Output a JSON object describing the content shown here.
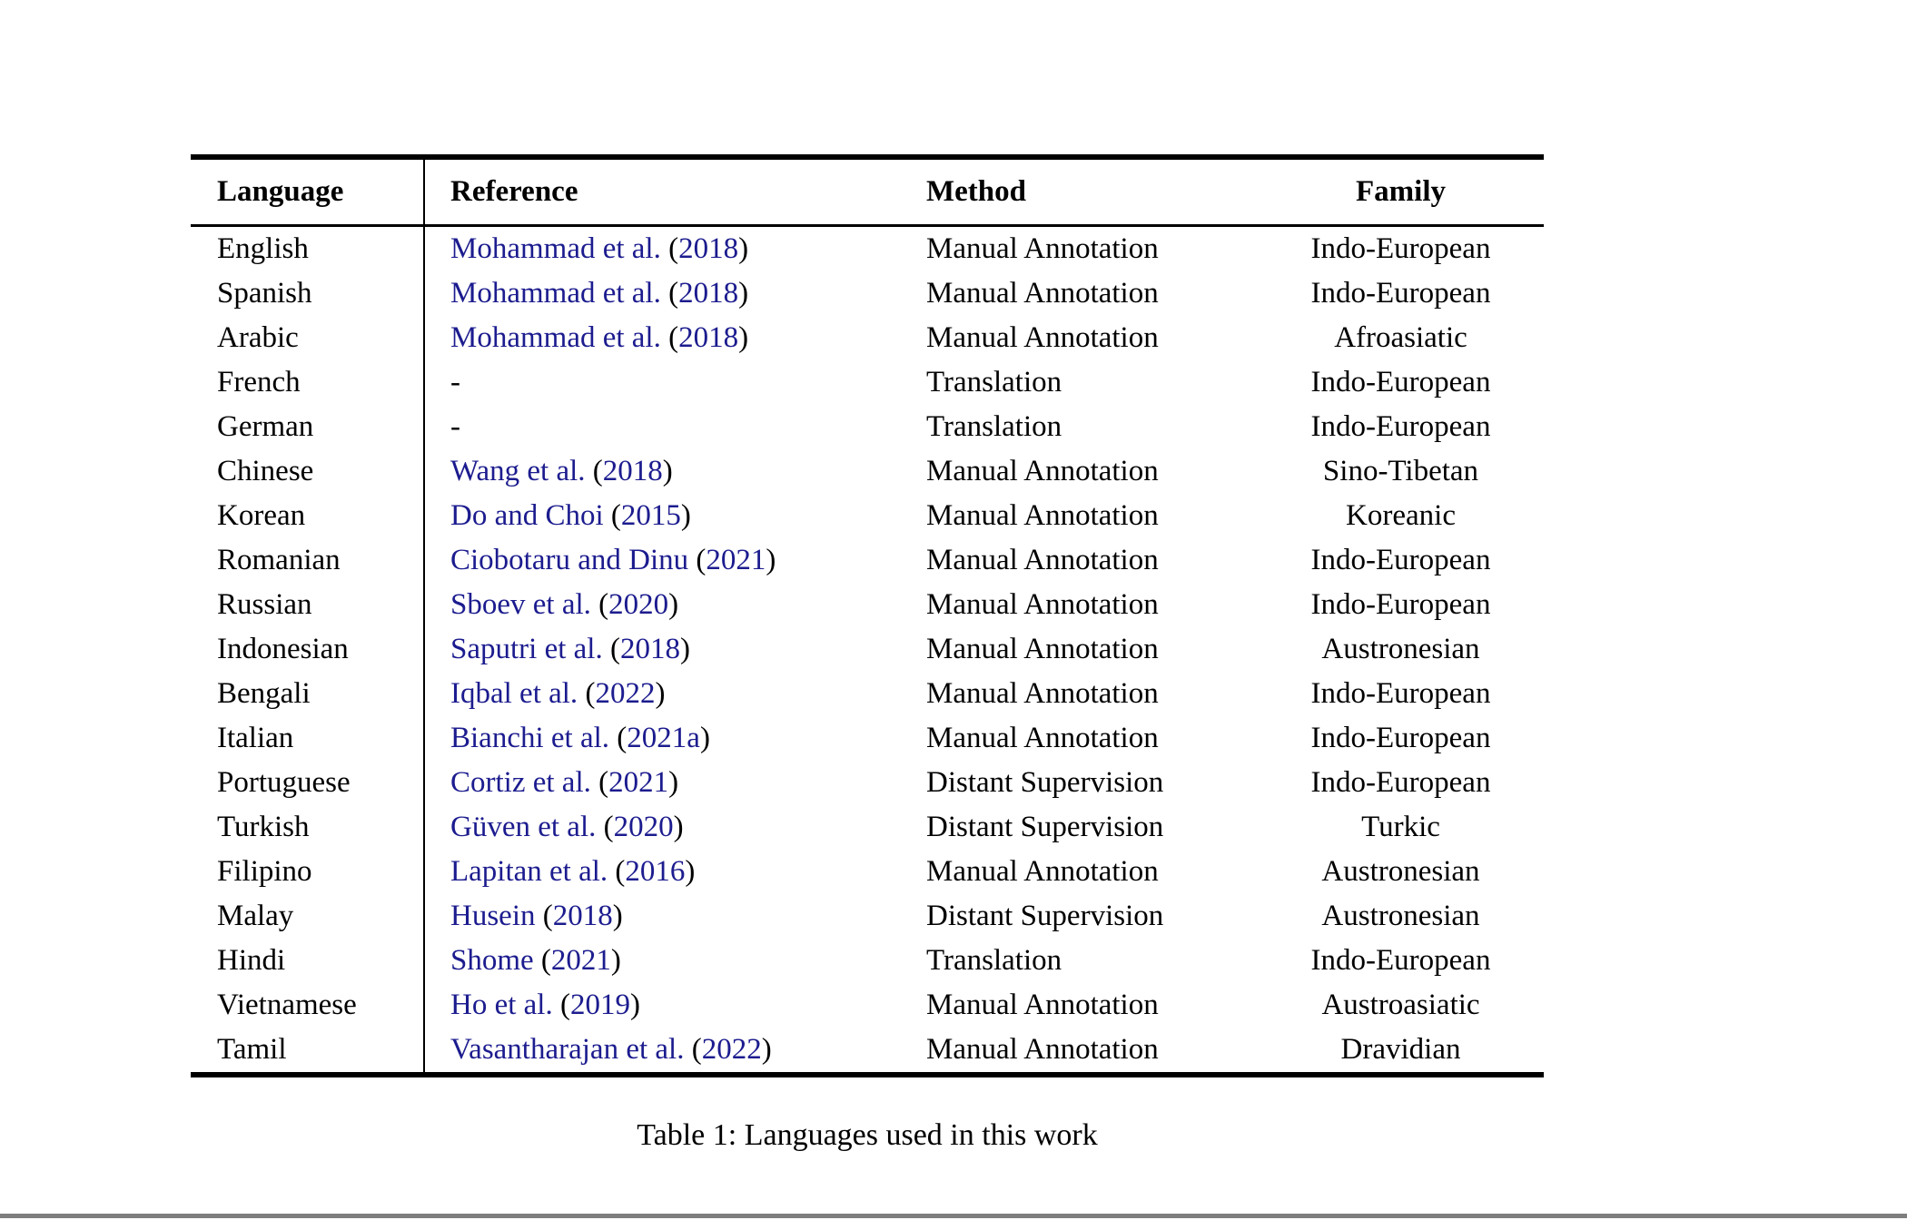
{
  "colors": {
    "link": "#1c1c8f",
    "rule": "#000000",
    "page_divider": "#7e7e7e"
  },
  "table": {
    "caption": "Table 1: Languages used in this work",
    "columns": [
      "Language",
      "Reference",
      "Method",
      "Family"
    ],
    "rows": [
      {
        "language": "English",
        "ref_authors": "Mohammad et al.",
        "ref_year": "2018",
        "method": "Manual Annotation",
        "family": "Indo-European"
      },
      {
        "language": "Spanish",
        "ref_authors": "Mohammad et al.",
        "ref_year": "2018",
        "method": "Manual Annotation",
        "family": "Indo-European"
      },
      {
        "language": "Arabic",
        "ref_authors": "Mohammad et al.",
        "ref_year": "2018",
        "method": "Manual Annotation",
        "family": "Afroasiatic"
      },
      {
        "language": "French",
        "ref_authors": "-",
        "ref_year": "",
        "method": "Translation",
        "family": "Indo-European"
      },
      {
        "language": "German",
        "ref_authors": "-",
        "ref_year": "",
        "method": "Translation",
        "family": "Indo-European"
      },
      {
        "language": "Chinese",
        "ref_authors": "Wang et al.",
        "ref_year": "2018",
        "method": "Manual Annotation",
        "family": "Sino-Tibetan"
      },
      {
        "language": "Korean",
        "ref_authors": "Do and Choi",
        "ref_year": "2015",
        "method": "Manual Annotation",
        "family": "Koreanic"
      },
      {
        "language": "Romanian",
        "ref_authors": "Ciobotaru and Dinu",
        "ref_year": "2021",
        "method": "Manual Annotation",
        "family": "Indo-European"
      },
      {
        "language": "Russian",
        "ref_authors": "Sboev et al.",
        "ref_year": "2020",
        "method": "Manual Annotation",
        "family": "Indo-European"
      },
      {
        "language": "Indonesian",
        "ref_authors": "Saputri et al.",
        "ref_year": "2018",
        "method": "Manual Annotation",
        "family": "Austronesian"
      },
      {
        "language": "Bengali",
        "ref_authors": "Iqbal et al.",
        "ref_year": "2022",
        "method": "Manual Annotation",
        "family": "Indo-European"
      },
      {
        "language": "Italian",
        "ref_authors": "Bianchi et al.",
        "ref_year": "2021a",
        "method": "Manual Annotation",
        "family": "Indo-European"
      },
      {
        "language": "Portuguese",
        "ref_authors": "Cortiz et al.",
        "ref_year": "2021",
        "method": "Distant Supervision",
        "family": "Indo-European"
      },
      {
        "language": "Turkish",
        "ref_authors": "Güven et al.",
        "ref_year": "2020",
        "method": "Distant Supervision",
        "family": "Turkic"
      },
      {
        "language": "Filipino",
        "ref_authors": "Lapitan et al.",
        "ref_year": "2016",
        "method": "Manual Annotation",
        "family": "Austronesian"
      },
      {
        "language": "Malay",
        "ref_authors": "Husein",
        "ref_year": "2018",
        "method": "Distant Supervision",
        "family": "Austronesian"
      },
      {
        "language": "Hindi",
        "ref_authors": "Shome",
        "ref_year": "2021",
        "method": "Translation",
        "family": "Indo-European"
      },
      {
        "language": "Vietnamese",
        "ref_authors": "Ho et al.",
        "ref_year": "2019",
        "method": "Manual Annotation",
        "family": "Austroasiatic"
      },
      {
        "language": "Tamil",
        "ref_authors": "Vasantharajan et al.",
        "ref_year": "2022",
        "method": "Manual Annotation",
        "family": "Dravidian"
      }
    ]
  }
}
